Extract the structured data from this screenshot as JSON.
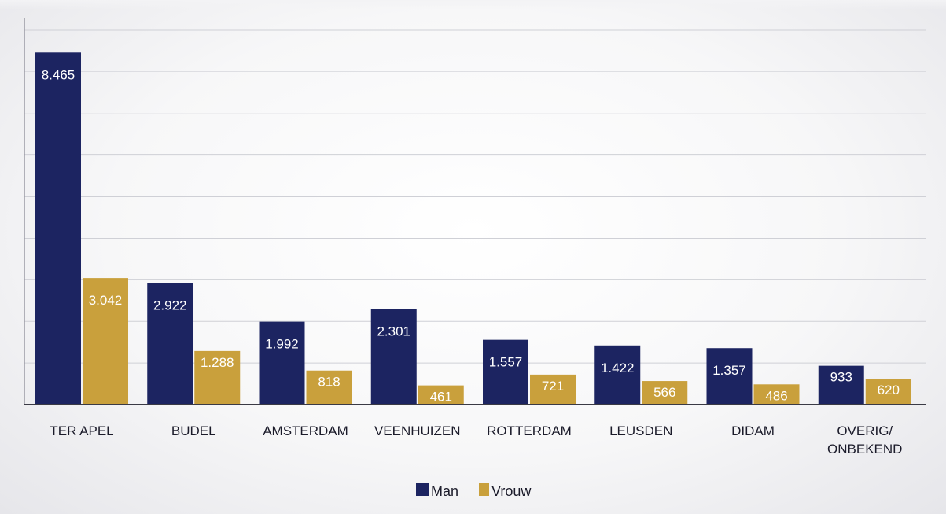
{
  "chart_data": {
    "type": "bar",
    "title": "",
    "xlabel": "",
    "ylabel": "",
    "categories": [
      "TER APEL",
      "BUDEL",
      "AMSTERDAM",
      "VEENHUIZEN",
      "ROTTERDAM",
      "LEUSDEN",
      "DIDAM",
      "OVERIG/\nONBEKEND"
    ],
    "series": [
      {
        "name": "Man",
        "color": "#1c2461",
        "values": [
          8465,
          2922,
          1992,
          2301,
          1557,
          1422,
          1357,
          933
        ],
        "labels": [
          "8.465",
          "2.922",
          "1.992",
          "2.301",
          "1.557",
          "1.422",
          "1.357",
          "933"
        ]
      },
      {
        "name": "Vrouw",
        "color": "#c9a03c",
        "values": [
          3042,
          1288,
          818,
          461,
          721,
          566,
          486,
          620
        ],
        "labels": [
          "3.042",
          "1.288",
          "818",
          "461",
          "721",
          "566",
          "486",
          "620"
        ]
      }
    ],
    "ylim": [
      0,
      9000
    ],
    "grid": true,
    "legend_position": "bottom-center"
  }
}
